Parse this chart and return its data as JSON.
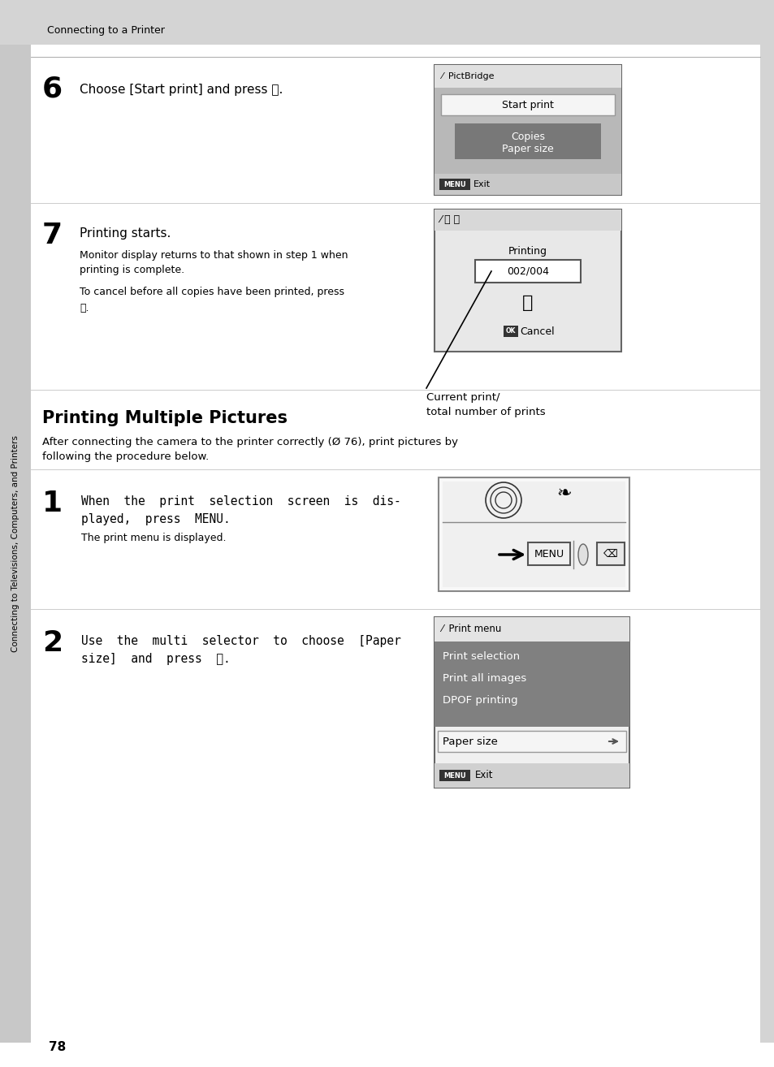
{
  "bg_color": "#d4d4d4",
  "page_bg": "#ffffff",
  "header_bg": "#d4d4d4",
  "header_text": "Connecting to a Printer",
  "sidebar_text": "Connecting to Televisions, Computers, and Printers",
  "page_number": "78",
  "step6_num": "6",
  "step6_text": "Choose [Start print] and press ⒪.",
  "step7_num": "7",
  "step7_title": "Printing starts.",
  "step7_body1": "Monitor display returns to that shown in step 1 when\nprinting is complete.",
  "step7_body2": "To cancel before all copies have been printed, press",
  "step7_ok": "⒪.",
  "caption": "Current print/\ntotal number of prints",
  "section_title": "Printing Multiple Pictures",
  "section_intro1": "After connecting the camera to the printer correctly (Ø 76), print pictures by",
  "section_intro2": "following the procedure below.",
  "step1_num": "1",
  "step1_line1": "When  the  print  selection  screen  is  dis-",
  "step1_line2": "played,  press  MENU.",
  "step1_body": "The print menu is displayed.",
  "step2_num": "2",
  "step2_line1": "Use  the  multi  selector  to  choose  [Paper",
  "step2_line2": "size]  and  press  ⒪.",
  "screen1_bg": "#b8b8b8",
  "screen1_title_bg": "#e0e0e0",
  "screen1_body_bg": "#b8b8b8",
  "screen1_dark_bg": "#787878",
  "screen1_footer_bg": "#c8c8c8",
  "screen2_bg": "#e0e0e0",
  "screen2_title_bg": "#d0d0d0",
  "screen3_highlight_bg": "#808080",
  "screen3_paper_bg": "#e8e8e8",
  "screen3_body_bg": "#808080",
  "screen3_footer_bg": "#d0d0d0"
}
